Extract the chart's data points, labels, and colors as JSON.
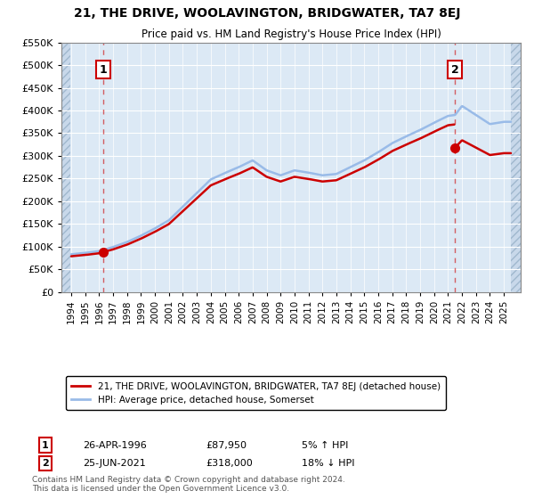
{
  "title": "21, THE DRIVE, WOOLAVINGTON, BRIDGWATER, TA7 8EJ",
  "subtitle": "Price paid vs. HM Land Registry's House Price Index (HPI)",
  "background_color": "#dce9f5",
  "hatch_color": "#c8d8ea",
  "grid_color": "#ffffff",
  "line1_color": "#cc0000",
  "line2_color": "#99bbe8",
  "anno_box_color": "#cc0000",
  "ylim": [
    0,
    550000
  ],
  "ytick_values": [
    0,
    50000,
    100000,
    150000,
    200000,
    250000,
    300000,
    350000,
    400000,
    450000,
    500000,
    550000
  ],
  "ytick_labels": [
    "£0",
    "£50K",
    "£100K",
    "£150K",
    "£200K",
    "£250K",
    "£300K",
    "£350K",
    "£400K",
    "£450K",
    "£500K",
    "£550K"
  ],
  "xlim": [
    1993.3,
    2026.2
  ],
  "data_xstart": 1994.0,
  "data_xend": 2025.5,
  "sale1_year": 1996.32,
  "sale1_price": 87950,
  "sale2_year": 2021.48,
  "sale2_price": 318000,
  "anno1_y": 490000,
  "anno2_y": 490000,
  "legend_line1": "21, THE DRIVE, WOOLAVINGTON, BRIDGWATER, TA7 8EJ (detached house)",
  "legend_line2": "HPI: Average price, detached house, Somerset",
  "note1_label": "1",
  "note1_date": "26-APR-1996",
  "note1_price": "£87,950",
  "note1_hpi": "5% ↑ HPI",
  "note2_label": "2",
  "note2_date": "25-JUN-2021",
  "note2_price": "£318,000",
  "note2_hpi": "18% ↓ HPI",
  "footer": "Contains HM Land Registry data © Crown copyright and database right 2024.\nThis data is licensed under the Open Government Licence v3.0."
}
